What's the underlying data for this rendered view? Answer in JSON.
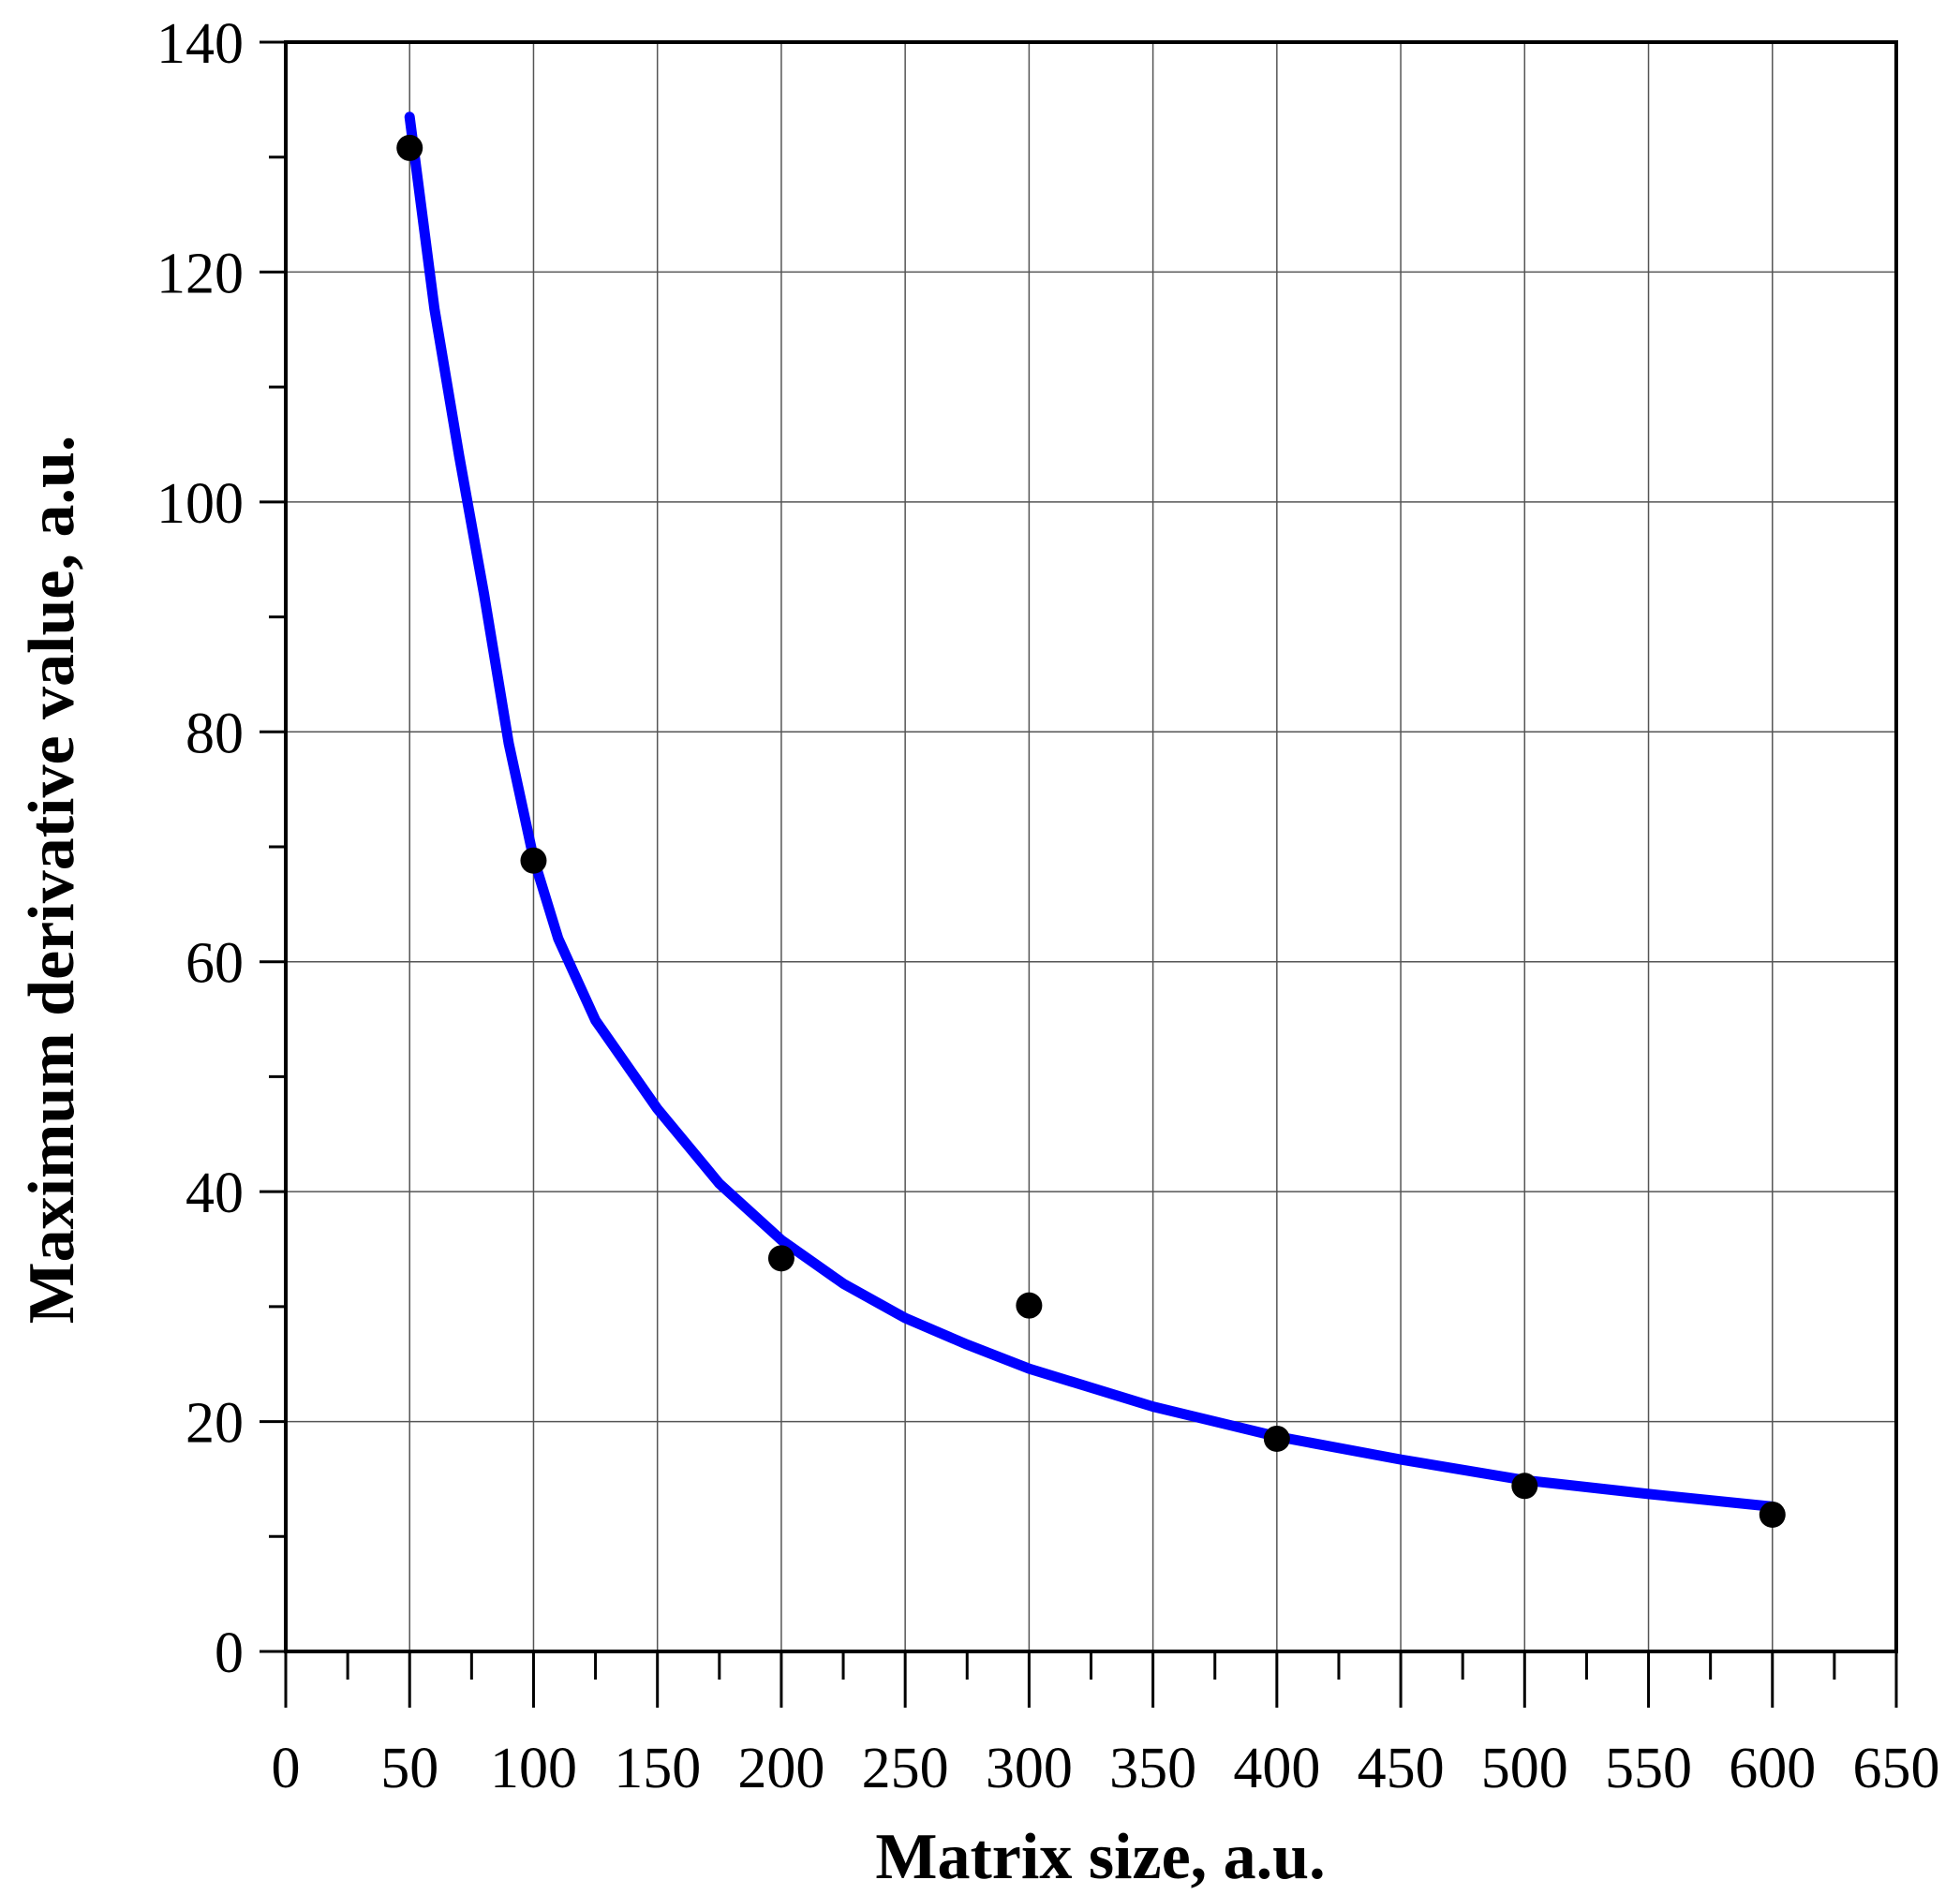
{
  "chart_data": {
    "type": "scatter",
    "title": "",
    "xlabel": "Matrix size, a.u.",
    "ylabel": "Maximum derivative value, a.u.",
    "xlim": [
      0,
      650
    ],
    "ylim": [
      0,
      140
    ],
    "x_ticks": [
      "0",
      "50",
      "100",
      "150",
      "200",
      "250",
      "300",
      "350",
      "400",
      "450",
      "500",
      "550",
      "600",
      "650"
    ],
    "y_ticks": [
      "0",
      "20",
      "40",
      "60",
      "80",
      "100",
      "120",
      "140"
    ],
    "grid": true,
    "series": [
      {
        "kind": "points",
        "color": "#000000",
        "points": [
          {
            "x": 50,
            "y": 130.8
          },
          {
            "x": 100,
            "y": 68.8
          },
          {
            "x": 200,
            "y": 34.2
          },
          {
            "x": 300,
            "y": 30.1
          },
          {
            "x": 400,
            "y": 18.5
          },
          {
            "x": 500,
            "y": 14.4
          },
          {
            "x": 600,
            "y": 11.9
          }
        ]
      },
      {
        "kind": "fit-curve",
        "color": "#0000ff",
        "points": [
          {
            "x": 50,
            "y": 133.5
          },
          {
            "x": 60,
            "y": 116.8
          },
          {
            "x": 70,
            "y": 104.0
          },
          {
            "x": 80,
            "y": 92.0
          },
          {
            "x": 90,
            "y": 79.0
          },
          {
            "x": 100,
            "y": 69.0
          },
          {
            "x": 110,
            "y": 62.0
          },
          {
            "x": 125,
            "y": 54.9
          },
          {
            "x": 150,
            "y": 47.2
          },
          {
            "x": 175,
            "y": 40.7
          },
          {
            "x": 200,
            "y": 35.8
          },
          {
            "x": 225,
            "y": 32.0
          },
          {
            "x": 250,
            "y": 29.0
          },
          {
            "x": 275,
            "y": 26.7
          },
          {
            "x": 300,
            "y": 24.6
          },
          {
            "x": 350,
            "y": 21.3
          },
          {
            "x": 400,
            "y": 18.7
          },
          {
            "x": 450,
            "y": 16.7
          },
          {
            "x": 500,
            "y": 14.9
          },
          {
            "x": 550,
            "y": 13.7
          },
          {
            "x": 600,
            "y": 12.6
          }
        ]
      }
    ]
  }
}
